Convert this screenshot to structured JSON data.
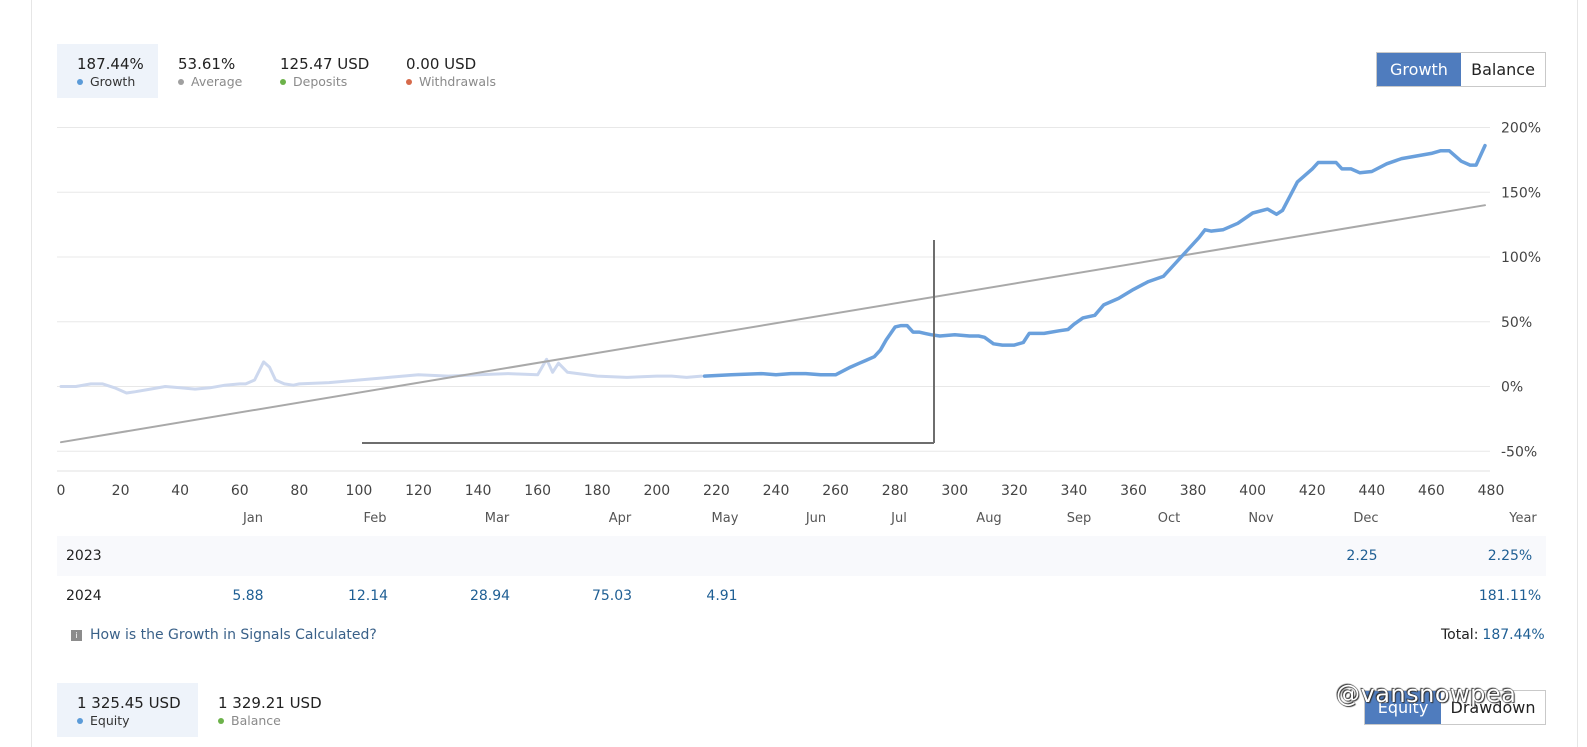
{
  "summary": {
    "growth": {
      "value": "187.44%",
      "label": "Growth"
    },
    "average": {
      "value": "53.61%",
      "label": "Average"
    },
    "deposits": {
      "value": "125.47 USD",
      "label": "Deposits"
    },
    "withdrawals": {
      "value": "0.00 USD",
      "label": "Withdrawals"
    }
  },
  "colors": {
    "accent": "#4f7cbe",
    "growth_dot": "#5b9bd8",
    "average_dot": "#a0a0a0",
    "deposits_dot": "#6cb24a",
    "withdrawals_dot": "#d66a4b",
    "growth_line": "#6aa0dc",
    "history_line": "#cdd8ee",
    "trend_line": "#a9a9a9",
    "value_text": "#1f5f94"
  },
  "chart_toggle": {
    "growth": "Growth",
    "balance": "Balance"
  },
  "chart_data": {
    "type": "line",
    "xlim": [
      0,
      480
    ],
    "ylim": [
      -65,
      200
    ],
    "x_ticks": [
      "0",
      "20",
      "40",
      "60",
      "80",
      "100",
      "120",
      "140",
      "160",
      "180",
      "200",
      "220",
      "240",
      "260",
      "280",
      "300",
      "320",
      "340",
      "360",
      "380",
      "400",
      "420",
      "440",
      "460",
      "480"
    ],
    "y_ticks": [
      "200%",
      "150%",
      "100%",
      "50%",
      "0%",
      "-50%"
    ],
    "y_tick_values": [
      200,
      150,
      100,
      50,
      0,
      -50
    ],
    "grid": true,
    "series": [
      {
        "style": "history",
        "x": [
          0,
          5,
          10,
          14,
          18,
          22,
          25,
          30,
          35,
          40,
          45,
          50,
          55,
          60,
          62,
          65,
          68,
          70,
          72,
          75,
          78,
          80,
          90,
          100,
          110,
          120,
          130,
          140,
          150,
          160,
          163,
          165,
          167,
          170,
          180,
          190,
          200,
          205,
          210,
          215
        ],
        "y": [
          0,
          0,
          2,
          2,
          -1,
          -5,
          -4,
          -2,
          0,
          -1,
          -2,
          -1,
          1,
          2,
          2,
          5,
          19,
          15,
          5,
          2,
          1,
          2,
          3,
          5,
          7,
          9,
          8,
          9,
          10,
          9,
          21,
          11,
          18,
          11,
          8,
          7,
          8,
          8,
          7,
          8
        ]
      },
      {
        "style": "growth",
        "x": [
          216,
          225,
          235,
          240,
          245,
          250,
          255,
          260,
          265,
          268,
          270,
          273,
          275,
          277,
          280,
          282,
          284,
          286,
          288,
          290,
          292,
          295,
          300,
          305,
          308,
          310,
          313,
          316,
          320,
          323,
          325,
          330,
          335,
          338,
          340,
          343,
          347,
          350,
          355,
          360,
          365,
          370,
          374,
          378,
          382,
          384,
          386,
          390,
          395,
          400,
          405,
          408,
          410,
          415,
          420,
          422,
          428,
          430,
          433,
          436,
          440,
          445,
          450,
          455,
          460,
          463,
          466,
          470,
          473,
          475,
          478
        ],
        "y": [
          8,
          9,
          10,
          9,
          10,
          10,
          9,
          9,
          15,
          18,
          20,
          23,
          28,
          36,
          46,
          47,
          47,
          42,
          42,
          41,
          40,
          39,
          40,
          39,
          39,
          38,
          33,
          32,
          32,
          34,
          41,
          41,
          43,
          44,
          48,
          53,
          55,
          63,
          68,
          75,
          81,
          85,
          95,
          105,
          115,
          121,
          120,
          121,
          126,
          134,
          137,
          133,
          136,
          158,
          168,
          173,
          173,
          168,
          168,
          165,
          166,
          172,
          176,
          178,
          180,
          182,
          182,
          174,
          171,
          171,
          186
        ]
      },
      {
        "style": "trend",
        "x": [
          0,
          478
        ],
        "y": [
          -43,
          140
        ]
      }
    ]
  },
  "months": [
    "Jan",
    "Feb",
    "Mar",
    "Apr",
    "May",
    "Jun",
    "Jul",
    "Aug",
    "Sep",
    "Oct",
    "Nov",
    "Dec",
    "Year"
  ],
  "table": [
    {
      "year": "2023",
      "cells": {
        "Dec": "2.25",
        "Year": "2.25%"
      }
    },
    {
      "year": "2024",
      "cells": {
        "Jan": "5.88",
        "Feb": "12.14",
        "Mar": "28.94",
        "Apr": "75.03",
        "May": "4.91",
        "Year": "181.11%"
      }
    }
  ],
  "help_link": "How is the Growth in Signals Calculated?",
  "total": {
    "label": "Total:",
    "value": "187.44%"
  },
  "bottom_summary": {
    "equity": {
      "value": "1 325.45 USD",
      "label": "Equity"
    },
    "balance": {
      "value": "1 329.21 USD",
      "label": "Balance"
    }
  },
  "bottom_toggle": {
    "equity": "Equity",
    "drawdown": "Drawdown"
  },
  "watermark": "@vansnowpea"
}
